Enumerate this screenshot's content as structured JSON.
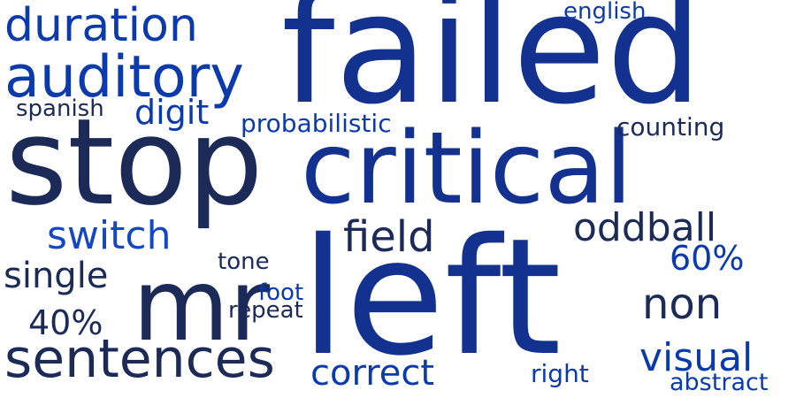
{
  "palette": {
    "background": "#ffffff",
    "dark": "#1b2a57",
    "navy": "#13328f",
    "royal": "#0b3aad",
    "blue": "#1447c0"
  },
  "words": {
    "failed": "failed",
    "stop": "stop",
    "critical": "critical",
    "left": "left",
    "mr": "mr",
    "duration": "duration",
    "auditory": "auditory",
    "sentences": "sentences",
    "field": "field",
    "oddball": "oddball",
    "switch": "switch",
    "digit": "digit",
    "single": "single",
    "non": "non",
    "visual": "visual",
    "correct": "correct",
    "sixty": "60%",
    "forty": "40%",
    "probabilistic": "probabilistic",
    "counting": "counting",
    "spanish": "spanish",
    "english": "english",
    "tone": "tone",
    "foot": "foot",
    "repeat": "repeat",
    "right": "right",
    "abstract": "abstract"
  }
}
